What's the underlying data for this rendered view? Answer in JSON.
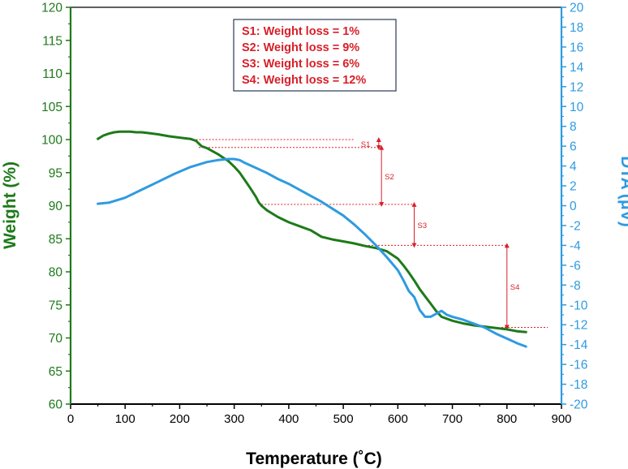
{
  "chart_data": {
    "type": "line",
    "xlabel": "Temperature (˚C)",
    "ylabel_left": "Weight (%)",
    "ylabel_right": "DTA (μV)",
    "xlim": [
      0,
      900
    ],
    "ylim_left": [
      60,
      120
    ],
    "ylim_right": [
      -20,
      20
    ],
    "x_ticks": [
      "0",
      "100",
      "200",
      "300",
      "400",
      "500",
      "600",
      "700",
      "800",
      "900"
    ],
    "y_left_ticks": [
      "60",
      "65",
      "70",
      "75",
      "80",
      "85",
      "90",
      "95",
      "100",
      "105",
      "110",
      "115",
      "120"
    ],
    "y_right_ticks": [
      "-20",
      "-18",
      "-16",
      "-14",
      "-12",
      "-10",
      "-8",
      "-6",
      "-4",
      "-2",
      "0",
      "2",
      "4",
      "6",
      "8",
      "10",
      "12",
      "14",
      "16",
      "18",
      "20"
    ],
    "colors": {
      "weight": "#1e7a1a",
      "dta": "#2e9be0",
      "annotation": "#d8202a",
      "axis": "#000000",
      "legend_border": "#2a3a55"
    },
    "legend": [
      "S1: Weight loss = 1%",
      "S2: Weight loss = 9%",
      "S3: Weight loss = 6%",
      "S4: Weight loss = 12%"
    ],
    "series": [
      {
        "name": "Weight",
        "axis": "left",
        "x": [
          50,
          60,
          70,
          80,
          90,
          100,
          110,
          120,
          130,
          140,
          160,
          180,
          200,
          220,
          230,
          240,
          250,
          270,
          290,
          300,
          310,
          320,
          330,
          340,
          345,
          350,
          360,
          380,
          400,
          420,
          440,
          450,
          460,
          480,
          500,
          520,
          540,
          560,
          580,
          600,
          610,
          620,
          630,
          640,
          650,
          660,
          670,
          680,
          700,
          720,
          740,
          760,
          780,
          800,
          820,
          835
        ],
        "values": [
          100.1,
          100.6,
          100.9,
          101.1,
          101.2,
          101.2,
          101.2,
          101.1,
          101.1,
          101.0,
          100.8,
          100.5,
          100.3,
          100.1,
          99.8,
          99.0,
          98.7,
          97.8,
          96.7,
          95.9,
          95.0,
          93.8,
          92.6,
          91.3,
          90.5,
          90.0,
          89.3,
          88.3,
          87.5,
          86.9,
          86.3,
          85.8,
          85.3,
          84.9,
          84.6,
          84.3,
          83.9,
          83.6,
          83.1,
          82.0,
          81.0,
          79.9,
          78.7,
          77.4,
          76.3,
          75.2,
          74.1,
          73.2,
          72.6,
          72.2,
          71.9,
          71.7,
          71.5,
          71.3,
          71.0,
          70.9
        ]
      },
      {
        "name": "DTA",
        "axis": "right",
        "x": [
          50,
          70,
          100,
          130,
          160,
          190,
          220,
          250,
          270,
          290,
          300,
          310,
          320,
          340,
          360,
          380,
          400,
          420,
          440,
          460,
          480,
          500,
          520,
          540,
          560,
          580,
          600,
          610,
          620,
          630,
          640,
          650,
          660,
          670,
          680,
          690,
          700,
          720,
          740,
          760,
          780,
          800,
          820,
          835
        ],
        "values": [
          0.2,
          0.3,
          0.8,
          1.6,
          2.4,
          3.2,
          3.9,
          4.4,
          4.6,
          4.7,
          4.7,
          4.6,
          4.3,
          3.8,
          3.3,
          2.7,
          2.2,
          1.6,
          1.0,
          0.4,
          -0.3,
          -1.0,
          -1.9,
          -2.9,
          -4.0,
          -5.2,
          -6.5,
          -7.5,
          -8.6,
          -9.2,
          -10.5,
          -11.2,
          -11.2,
          -10.9,
          -10.6,
          -11.0,
          -11.2,
          -11.5,
          -11.9,
          -12.3,
          -12.9,
          -13.4,
          -13.9,
          -14.2
        ]
      }
    ],
    "steps": [
      {
        "label": "S1",
        "x": 565,
        "from": 100.0,
        "to": 98.8
      },
      {
        "label": "S2",
        "x": 570,
        "from": 98.8,
        "to": 90.2
      },
      {
        "label": "S3",
        "x": 630,
        "from": 90.2,
        "to": 84.0
      },
      {
        "label": "S4",
        "x": 800,
        "from": 84.0,
        "to": 71.6
      }
    ],
    "guides": [
      {
        "y": 100.0,
        "x_from": 230,
        "x_to": 520
      },
      {
        "y": 98.8,
        "x_from": 235,
        "x_to": 570
      },
      {
        "y": 90.2,
        "x_from": 350,
        "x_to": 630
      },
      {
        "y": 84.0,
        "x_from": 540,
        "x_to": 800
      },
      {
        "y": 71.6,
        "x_from": 790,
        "x_to": 875
      }
    ]
  }
}
